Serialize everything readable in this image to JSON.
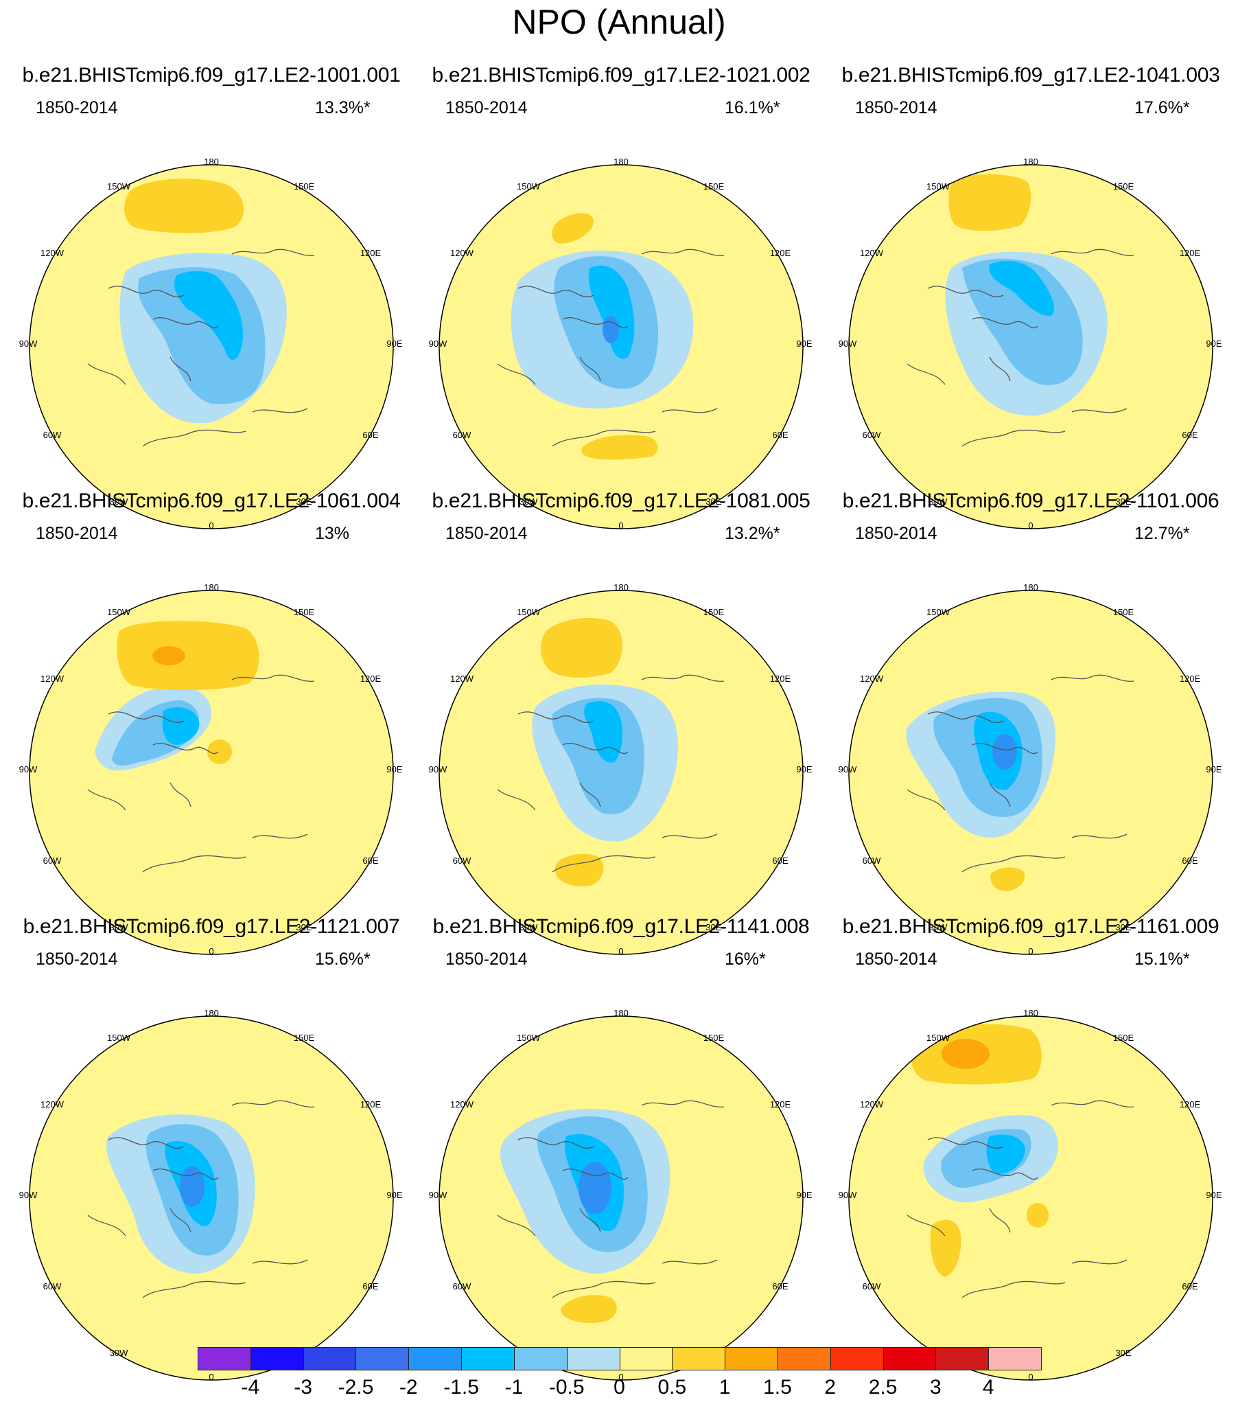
{
  "title": "NPO (Annual)",
  "period": "1850-2014",
  "lon_labels": [
    "180",
    "150E",
    "120E",
    "90E",
    "60E",
    "30E",
    "0",
    "30W",
    "60W",
    "90W",
    "120W",
    "150W"
  ],
  "panels": [
    {
      "name": "b.e21.BHISTcmip6.f09_g17.LE2-1001.001",
      "pct": "13.3%*"
    },
    {
      "name": "b.e21.BHISTcmip6.f09_g17.LE2-1021.002",
      "pct": "16.1%*"
    },
    {
      "name": "b.e21.BHISTcmip6.f09_g17.LE2-1041.003",
      "pct": "17.6%*"
    },
    {
      "name": "b.e21.BHISTcmip6.f09_g17.LE2-1061.004",
      "pct": "13%"
    },
    {
      "name": "b.e21.BHISTcmip6.f09_g17.LE2-1081.005",
      "pct": "13.2%*"
    },
    {
      "name": "b.e21.BHISTcmip6.f09_g17.LE2-1101.006",
      "pct": "12.7%*"
    },
    {
      "name": "b.e21.BHISTcmip6.f09_g17.LE2-1121.007",
      "pct": "15.6%*"
    },
    {
      "name": "b.e21.BHISTcmip6.f09_g17.LE2-1141.008",
      "pct": "16%*"
    },
    {
      "name": "b.e21.BHISTcmip6.f09_g17.LE2-1161.009",
      "pct": "15.1%*"
    }
  ],
  "colorbar": {
    "ticks": [
      "-4",
      "-3",
      "-2.5",
      "-2",
      "-1.5",
      "-1",
      "-0.5",
      "0",
      "0.5",
      "1",
      "1.5",
      "2",
      "2.5",
      "3",
      "4"
    ],
    "colors": [
      "#8a2be2",
      "#1a0dff",
      "#2e44e6",
      "#3c72ee",
      "#2196f7",
      "#00c0ff",
      "#74c7f5",
      "#b3def3",
      "#fff58f",
      "#fdd331",
      "#fca80a",
      "#fc7710",
      "#fc320b",
      "#e6000b",
      "#d01a1a",
      "#fbb4b4"
    ]
  },
  "chart_data": {
    "type": "heatmap",
    "title": "NPO (Annual)",
    "projection": "north polar stereographic",
    "period": "1850-2014",
    "panels": [
      {
        "name": "b.e21.BHISTcmip6.f09_g17.LE2-1001.001",
        "pct_variance": "13.3%*",
        "max_negative": -1.5,
        "max_positive": 1.0
      },
      {
        "name": "b.e21.BHISTcmip6.f09_g17.LE2-1021.002",
        "pct_variance": "16.1%*",
        "max_negative": -2.0,
        "max_positive": 1.0
      },
      {
        "name": "b.e21.BHISTcmip6.f09_g17.LE2-1041.003",
        "pct_variance": "17.6%*",
        "max_negative": -1.5,
        "max_positive": 1.0
      },
      {
        "name": "b.e21.BHISTcmip6.f09_g17.LE2-1061.004",
        "pct_variance": "13%",
        "max_negative": -1.5,
        "max_positive": 1.5
      },
      {
        "name": "b.e21.BHISTcmip6.f09_g17.LE2-1081.005",
        "pct_variance": "13.2%*",
        "max_negative": -1.5,
        "max_positive": 1.0
      },
      {
        "name": "b.e21.BHISTcmip6.f09_g17.LE2-1101.006",
        "pct_variance": "12.7%*",
        "max_negative": -2.0,
        "max_positive": 1.0
      },
      {
        "name": "b.e21.BHISTcmip6.f09_g17.LE2-1121.007",
        "pct_variance": "15.6%*",
        "max_negative": -2.0,
        "max_positive": 1.0
      },
      {
        "name": "b.e21.BHISTcmip6.f09_g17.LE2-1141.008",
        "pct_variance": "16%*",
        "max_negative": -2.0,
        "max_positive": 1.0
      },
      {
        "name": "b.e21.BHISTcmip6.f09_g17.LE2-1161.009",
        "pct_variance": "15.1%*",
        "max_negative": -1.5,
        "max_positive": 1.5
      }
    ],
    "contour_levels": [
      -4,
      -3,
      -2.5,
      -2,
      -1.5,
      -1,
      -0.5,
      0,
      0.5,
      1,
      1.5,
      2,
      2.5,
      3,
      4
    ]
  }
}
